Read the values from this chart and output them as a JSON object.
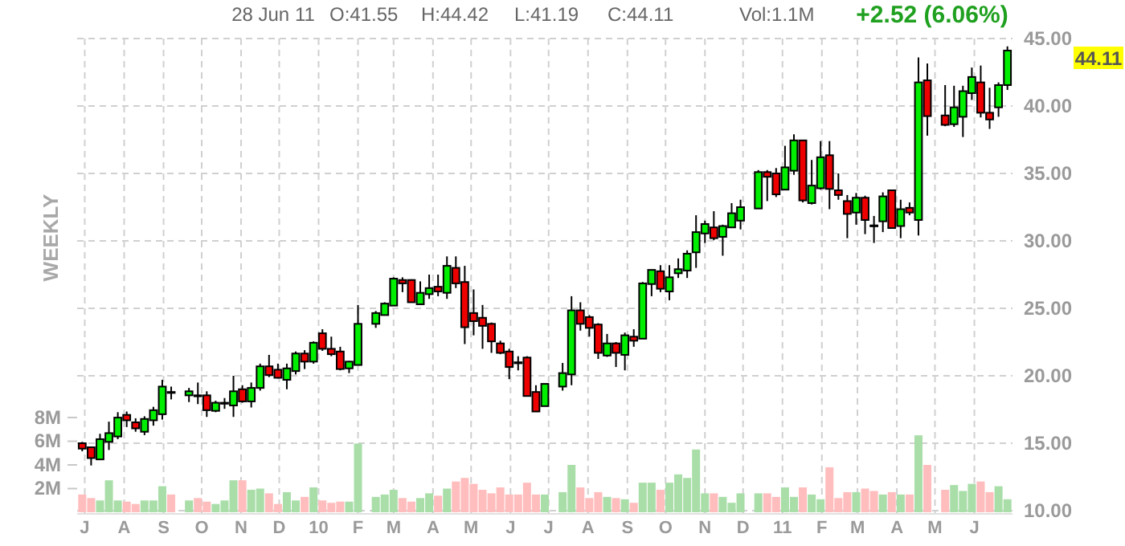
{
  "chart_data": {
    "type": "candlestick",
    "annotations": [
      "28 Jun 11",
      "O:41.55",
      "H:44.42",
      "L:41.19",
      "C:44.11",
      "Vol:1.1M",
      "+2.52 (6.06%)",
      "WEEKLY",
      "44.11"
    ],
    "x": [
      "2009-06-29",
      "2009-07-06",
      "2009-07-13",
      "2009-07-20",
      "2009-07-27",
      "2009-08-03",
      "2009-08-10",
      "2009-08-17",
      "2009-08-24",
      "2009-08-31",
      "2009-09-07",
      "2009-09-21",
      "2009-09-28",
      "2009-10-05",
      "2009-10-12",
      "2009-10-19",
      "2009-10-26",
      "2009-11-02",
      "2009-11-09",
      "2009-11-16",
      "2009-11-23",
      "2009-11-30",
      "2009-12-07",
      "2009-12-14",
      "2009-12-21",
      "2009-12-28",
      "2010-01-04",
      "2010-01-11",
      "2010-01-18",
      "2010-01-25",
      "2010-02-01",
      "2010-02-15",
      "2010-02-22",
      "2010-03-01",
      "2010-03-08",
      "2010-03-15",
      "2010-03-22",
      "2010-03-29",
      "2010-04-05",
      "2010-04-12",
      "2010-04-19",
      "2010-04-26",
      "2010-05-03",
      "2010-05-10",
      "2010-05-17",
      "2010-05-24",
      "2010-05-31",
      "2010-06-07",
      "2010-06-14",
      "2010-06-21",
      "2010-06-28",
      "2010-07-12",
      "2010-07-19",
      "2010-07-26",
      "2010-08-02",
      "2010-08-09",
      "2010-08-16",
      "2010-08-23",
      "2010-08-30",
      "2010-09-06",
      "2010-09-13",
      "2010-09-20",
      "2010-09-27",
      "2010-10-04",
      "2010-10-11",
      "2010-10-18",
      "2010-10-25",
      "2010-11-01",
      "2010-11-08",
      "2010-11-15",
      "2010-11-22",
      "2010-11-29",
      "2010-12-13",
      "2010-12-20",
      "2010-12-27",
      "2011-01-03",
      "2011-01-10",
      "2011-01-17",
      "2011-01-24",
      "2011-01-31",
      "2011-02-07",
      "2011-02-14",
      "2011-02-21",
      "2011-02-28",
      "2011-03-07",
      "2011-03-14",
      "2011-03-21",
      "2011-03-28",
      "2011-04-04",
      "2011-04-11",
      "2011-04-18",
      "2011-04-25",
      "2011-05-09",
      "2011-05-16",
      "2011-05-23",
      "2011-05-30",
      "2011-06-06",
      "2011-06-13",
      "2011-06-20",
      "2011-06-27"
    ],
    "ohlc": [
      [
        15.0,
        15.1,
        14.4,
        14.6
      ],
      [
        14.7,
        14.7,
        13.35,
        13.9
      ],
      [
        13.8,
        15.7,
        13.8,
        15.3
      ],
      [
        15.1,
        16.6,
        14.5,
        15.75
      ],
      [
        15.5,
        17.3,
        15.3,
        16.9
      ],
      [
        17.1,
        17.35,
        16.2,
        16.7
      ],
      [
        16.55,
        16.85,
        15.85,
        16.1
      ],
      [
        15.85,
        17.0,
        15.6,
        16.8
      ],
      [
        16.7,
        17.7,
        16.3,
        17.45
      ],
      [
        17.15,
        19.7,
        16.75,
        19.2
      ],
      [
        18.8,
        19.2,
        18.25,
        18.75
      ],
      [
        18.55,
        19.1,
        18.05,
        18.85
      ],
      [
        18.55,
        19.5,
        17.9,
        18.5
      ],
      [
        18.55,
        18.85,
        16.95,
        17.45
      ],
      [
        17.4,
        18.15,
        17.3,
        18.0
      ],
      [
        17.95,
        18.35,
        17.55,
        18.0
      ],
      [
        17.8,
        20.0,
        16.95,
        18.85
      ],
      [
        19.0,
        19.3,
        18.0,
        18.1
      ],
      [
        18.1,
        19.5,
        17.65,
        19.1
      ],
      [
        19.1,
        20.9,
        18.9,
        20.7
      ],
      [
        20.7,
        21.55,
        19.9,
        20.05
      ],
      [
        20.45,
        20.9,
        19.8,
        19.85
      ],
      [
        19.7,
        20.9,
        19.0,
        20.55
      ],
      [
        20.35,
        21.8,
        20.1,
        21.65
      ],
      [
        21.65,
        21.9,
        20.5,
        21.05
      ],
      [
        21.05,
        22.55,
        20.9,
        22.45
      ],
      [
        23.15,
        23.45,
        21.85,
        22.0
      ],
      [
        22.0,
        22.9,
        21.45,
        21.6
      ],
      [
        21.8,
        22.15,
        20.4,
        20.5
      ],
      [
        20.55,
        21.1,
        20.2,
        21.05
      ],
      [
        20.8,
        25.25,
        20.8,
        23.85
      ],
      [
        23.85,
        24.8,
        23.55,
        24.65
      ],
      [
        24.5,
        25.45,
        24.5,
        25.35
      ],
      [
        25.2,
        27.3,
        25.2,
        27.2
      ],
      [
        27.1,
        27.3,
        26.2,
        26.85
      ],
      [
        27.1,
        27.15,
        25.45,
        25.45
      ],
      [
        25.3,
        27.0,
        25.3,
        26.15
      ],
      [
        26.05,
        27.5,
        25.7,
        26.5
      ],
      [
        26.6,
        27.5,
        25.9,
        26.25
      ],
      [
        26.15,
        28.85,
        25.7,
        28.15
      ],
      [
        28.0,
        28.85,
        26.5,
        26.85
      ],
      [
        26.95,
        28.15,
        22.35,
        23.6
      ],
      [
        24.65,
        26.4,
        23.0,
        24.05
      ],
      [
        24.3,
        25.25,
        22.0,
        23.7
      ],
      [
        23.85,
        23.95,
        21.7,
        22.55
      ],
      [
        22.4,
        22.6,
        21.6,
        21.7
      ],
      [
        21.8,
        22.0,
        19.75,
        20.65
      ],
      [
        21.0,
        21.45,
        20.4,
        20.95
      ],
      [
        21.35,
        21.45,
        18.5,
        18.5
      ],
      [
        18.8,
        19.3,
        17.35,
        17.35
      ],
      [
        17.75,
        19.4,
        17.75,
        19.4
      ],
      [
        19.2,
        20.95,
        18.9,
        20.2
      ],
      [
        20.1,
        25.9,
        19.3,
        24.85
      ],
      [
        24.85,
        25.45,
        23.35,
        23.85
      ],
      [
        24.35,
        24.5,
        22.9,
        23.55
      ],
      [
        23.8,
        23.9,
        21.25,
        21.7
      ],
      [
        21.5,
        23.1,
        21.4,
        22.4
      ],
      [
        22.4,
        22.5,
        20.65,
        21.7
      ],
      [
        21.55,
        23.2,
        20.4,
        23.0
      ],
      [
        22.9,
        23.45,
        22.15,
        22.6
      ],
      [
        22.75,
        26.95,
        22.75,
        26.85
      ],
      [
        26.8,
        27.85,
        25.9,
        27.85
      ],
      [
        27.75,
        28.2,
        26.2,
        26.45
      ],
      [
        26.25,
        28.2,
        25.6,
        27.3
      ],
      [
        27.6,
        28.7,
        27.25,
        27.9
      ],
      [
        27.8,
        29.3,
        27.25,
        29.05
      ],
      [
        29.15,
        31.9,
        28.0,
        30.65
      ],
      [
        30.55,
        31.5,
        29.85,
        31.25
      ],
      [
        31.0,
        32.2,
        30.05,
        30.2
      ],
      [
        30.3,
        31.2,
        28.9,
        31.1
      ],
      [
        31.0,
        32.8,
        30.95,
        32.05
      ],
      [
        31.5,
        33.05,
        30.85,
        32.5
      ],
      [
        32.4,
        35.25,
        32.4,
        35.1
      ],
      [
        35.1,
        35.25,
        32.95,
        34.75
      ],
      [
        35.0,
        35.4,
        33.25,
        33.45
      ],
      [
        33.8,
        37.05,
        33.8,
        35.45
      ],
      [
        35.2,
        37.9,
        34.9,
        37.45
      ],
      [
        37.45,
        37.45,
        32.85,
        33.0
      ],
      [
        32.8,
        36.0,
        32.7,
        34.1
      ],
      [
        33.9,
        37.4,
        33.8,
        36.2
      ],
      [
        36.35,
        37.4,
        32.35,
        33.85
      ],
      [
        33.75,
        35.0,
        33.05,
        33.4
      ],
      [
        32.95,
        33.4,
        30.2,
        32.0
      ],
      [
        32.1,
        33.55,
        31.2,
        33.2
      ],
      [
        33.2,
        33.35,
        30.5,
        31.55
      ],
      [
        31.15,
        31.85,
        29.85,
        31.1
      ],
      [
        31.45,
        33.6,
        30.65,
        33.3
      ],
      [
        33.75,
        33.75,
        30.9,
        30.95
      ],
      [
        31.1,
        33.05,
        30.2,
        32.35
      ],
      [
        32.45,
        32.85,
        31.9,
        32.1
      ],
      [
        31.55,
        43.6,
        30.4,
        41.75
      ],
      [
        41.9,
        43.15,
        37.8,
        39.25
      ],
      [
        39.3,
        41.55,
        38.5,
        38.6
      ],
      [
        38.65,
        41.5,
        38.45,
        39.9
      ],
      [
        39.2,
        41.5,
        37.7,
        41.1
      ],
      [
        40.95,
        42.85,
        40.45,
        42.15
      ],
      [
        41.75,
        43.0,
        39.15,
        39.5
      ],
      [
        39.5,
        41.35,
        38.3,
        39.0
      ],
      [
        39.9,
        41.75,
        39.2,
        41.55
      ],
      [
        41.55,
        44.42,
        41.19,
        44.11
      ]
    ],
    "series": [
      {
        "type": "bar",
        "axis": "y2",
        "colors": [
          "#ffbdbd",
          "#ffbdbd",
          "#a9dea9",
          "#a9dea9",
          "#a9dea9",
          "#ffbdbd",
          "#ffbdbd",
          "#a9dea9",
          "#a9dea9",
          "#a9dea9",
          "#ffbdbd",
          "#a9dea9",
          "#ffbdbd",
          "#ffbdbd",
          "#a9dea9",
          "#a9dea9",
          "#a9dea9",
          "#ffbdbd",
          "#a9dea9",
          "#a9dea9",
          "#ffbdbd",
          "#ffbdbd",
          "#a9dea9",
          "#a9dea9",
          "#ffbdbd",
          "#a9dea9",
          "#ffbdbd",
          "#ffbdbd",
          "#ffbdbd",
          "#a9dea9",
          "#a9dea9",
          "#a9dea9",
          "#a9dea9",
          "#a9dea9",
          "#ffbdbd",
          "#ffbdbd",
          "#a9dea9",
          "#a9dea9",
          "#ffbdbd",
          "#a9dea9",
          "#ffbdbd",
          "#ffbdbd",
          "#ffbdbd",
          "#ffbdbd",
          "#ffbdbd",
          "#ffbdbd",
          "#ffbdbd",
          "#ffbdbd",
          "#ffbdbd",
          "#ffbdbd",
          "#a9dea9",
          "#a9dea9",
          "#a9dea9",
          "#ffbdbd",
          "#ffbdbd",
          "#ffbdbd",
          "#a9dea9",
          "#ffbdbd",
          "#a9dea9",
          "#ffbdbd",
          "#a9dea9",
          "#a9dea9",
          "#ffbdbd",
          "#a9dea9",
          "#a9dea9",
          "#a9dea9",
          "#a9dea9",
          "#a9dea9",
          "#ffbdbd",
          "#a9dea9",
          "#a9dea9",
          "#a9dea9",
          "#a9dea9",
          "#ffbdbd",
          "#ffbdbd",
          "#a9dea9",
          "#a9dea9",
          "#ffbdbd",
          "#a9dea9",
          "#a9dea9",
          "#ffbdbd",
          "#ffbdbd",
          "#ffbdbd",
          "#a9dea9",
          "#ffbdbd",
          "#ffbdbd",
          "#a9dea9",
          "#ffbdbd",
          "#a9dea9",
          "#ffbdbd",
          "#a9dea9",
          "#ffbdbd",
          "#ffbdbd",
          "#a9dea9",
          "#a9dea9",
          "#a9dea9",
          "#ffbdbd",
          "#ffbdbd",
          "#a9dea9",
          "#a9dea9"
        ],
        "values": [
          1.5,
          1.2,
          1.0,
          2.7,
          1.0,
          0.9,
          0.7,
          1.0,
          1.0,
          2.2,
          1.5,
          1.0,
          1.2,
          0.9,
          0.7,
          1.0,
          2.7,
          2.7,
          1.9,
          2.0,
          1.6,
          0.7,
          1.7,
          1.0,
          1.3,
          2.1,
          1.0,
          0.8,
          0.9,
          0.9,
          5.8,
          1.3,
          1.5,
          1.9,
          1.2,
          0.9,
          1.2,
          1.6,
          1.4,
          2.0,
          2.6,
          2.9,
          2.4,
          1.9,
          1.6,
          2.1,
          1.5,
          1.5,
          2.5,
          1.5,
          1.5,
          1.7,
          4.0,
          2.1,
          1.2,
          1.7,
          1.3,
          1.2,
          1.1,
          0.8,
          2.5,
          2.5,
          1.9,
          2.5,
          3.2,
          2.9,
          5.3,
          1.6,
          1.6,
          1.3,
          0.8,
          1.6,
          1.6,
          1.6,
          1.3,
          2.1,
          1.3,
          2.1,
          1.5,
          1.1,
          3.8,
          1.2,
          1.7,
          1.7,
          2.0,
          1.8,
          1.5,
          1.7,
          1.5,
          1.5,
          6.5,
          4.0,
          1.9,
          2.3,
          1.8,
          2.4,
          2.6,
          1.7,
          2.2,
          1.1
        ]
      }
    ],
    "xlim": [
      "2009-06-25",
      "2011-07-01"
    ],
    "xticks": [
      {
        "value": "2009-07-01",
        "label": "J"
      },
      {
        "value": "2009-08-01",
        "label": "A"
      },
      {
        "value": "2009-09-01",
        "label": "S"
      },
      {
        "value": "2009-10-01",
        "label": "O"
      },
      {
        "value": "2009-11-01",
        "label": "N"
      },
      {
        "value": "2009-12-01",
        "label": "D"
      },
      {
        "value": "2010-01-01",
        "label": "10"
      },
      {
        "value": "2010-02-01",
        "label": "F"
      },
      {
        "value": "2010-03-01",
        "label": "M"
      },
      {
        "value": "2010-04-01",
        "label": "A"
      },
      {
        "value": "2010-05-01",
        "label": "M"
      },
      {
        "value": "2010-06-01",
        "label": "J"
      },
      {
        "value": "2010-07-01",
        "label": "J"
      },
      {
        "value": "2010-08-01",
        "label": "A"
      },
      {
        "value": "2010-09-01",
        "label": "S"
      },
      {
        "value": "2010-10-01",
        "label": "O"
      },
      {
        "value": "2010-11-01",
        "label": "N"
      },
      {
        "value": "2010-12-01",
        "label": "D"
      },
      {
        "value": "2011-01-01",
        "label": "11"
      },
      {
        "value": "2011-02-01",
        "label": "F"
      },
      {
        "value": "2011-03-01",
        "label": "M"
      },
      {
        "value": "2011-04-01",
        "label": "A"
      },
      {
        "value": "2011-05-01",
        "label": "M"
      },
      {
        "value": "2011-06-01",
        "label": "J"
      }
    ],
    "ylim": [
      10,
      45
    ],
    "yticks": [
      {
        "value": 10,
        "label": "10.00"
      },
      {
        "value": 15,
        "label": "15.00"
      },
      {
        "value": 20,
        "label": "20.00"
      },
      {
        "value": 25,
        "label": "25.00"
      },
      {
        "value": 30,
        "label": "30.00"
      },
      {
        "value": 35,
        "label": "35.00"
      },
      {
        "value": 40,
        "label": "40.00"
      },
      {
        "value": 45,
        "label": "45.00"
      }
    ],
    "y2lim": [
      0,
      40
    ],
    "y2ticks": [
      {
        "value": 2,
        "label": "2M"
      },
      {
        "value": 4,
        "label": "4M"
      },
      {
        "value": 6,
        "label": "6M"
      },
      {
        "value": 8,
        "label": "8M"
      }
    ],
    "grid": true
  }
}
